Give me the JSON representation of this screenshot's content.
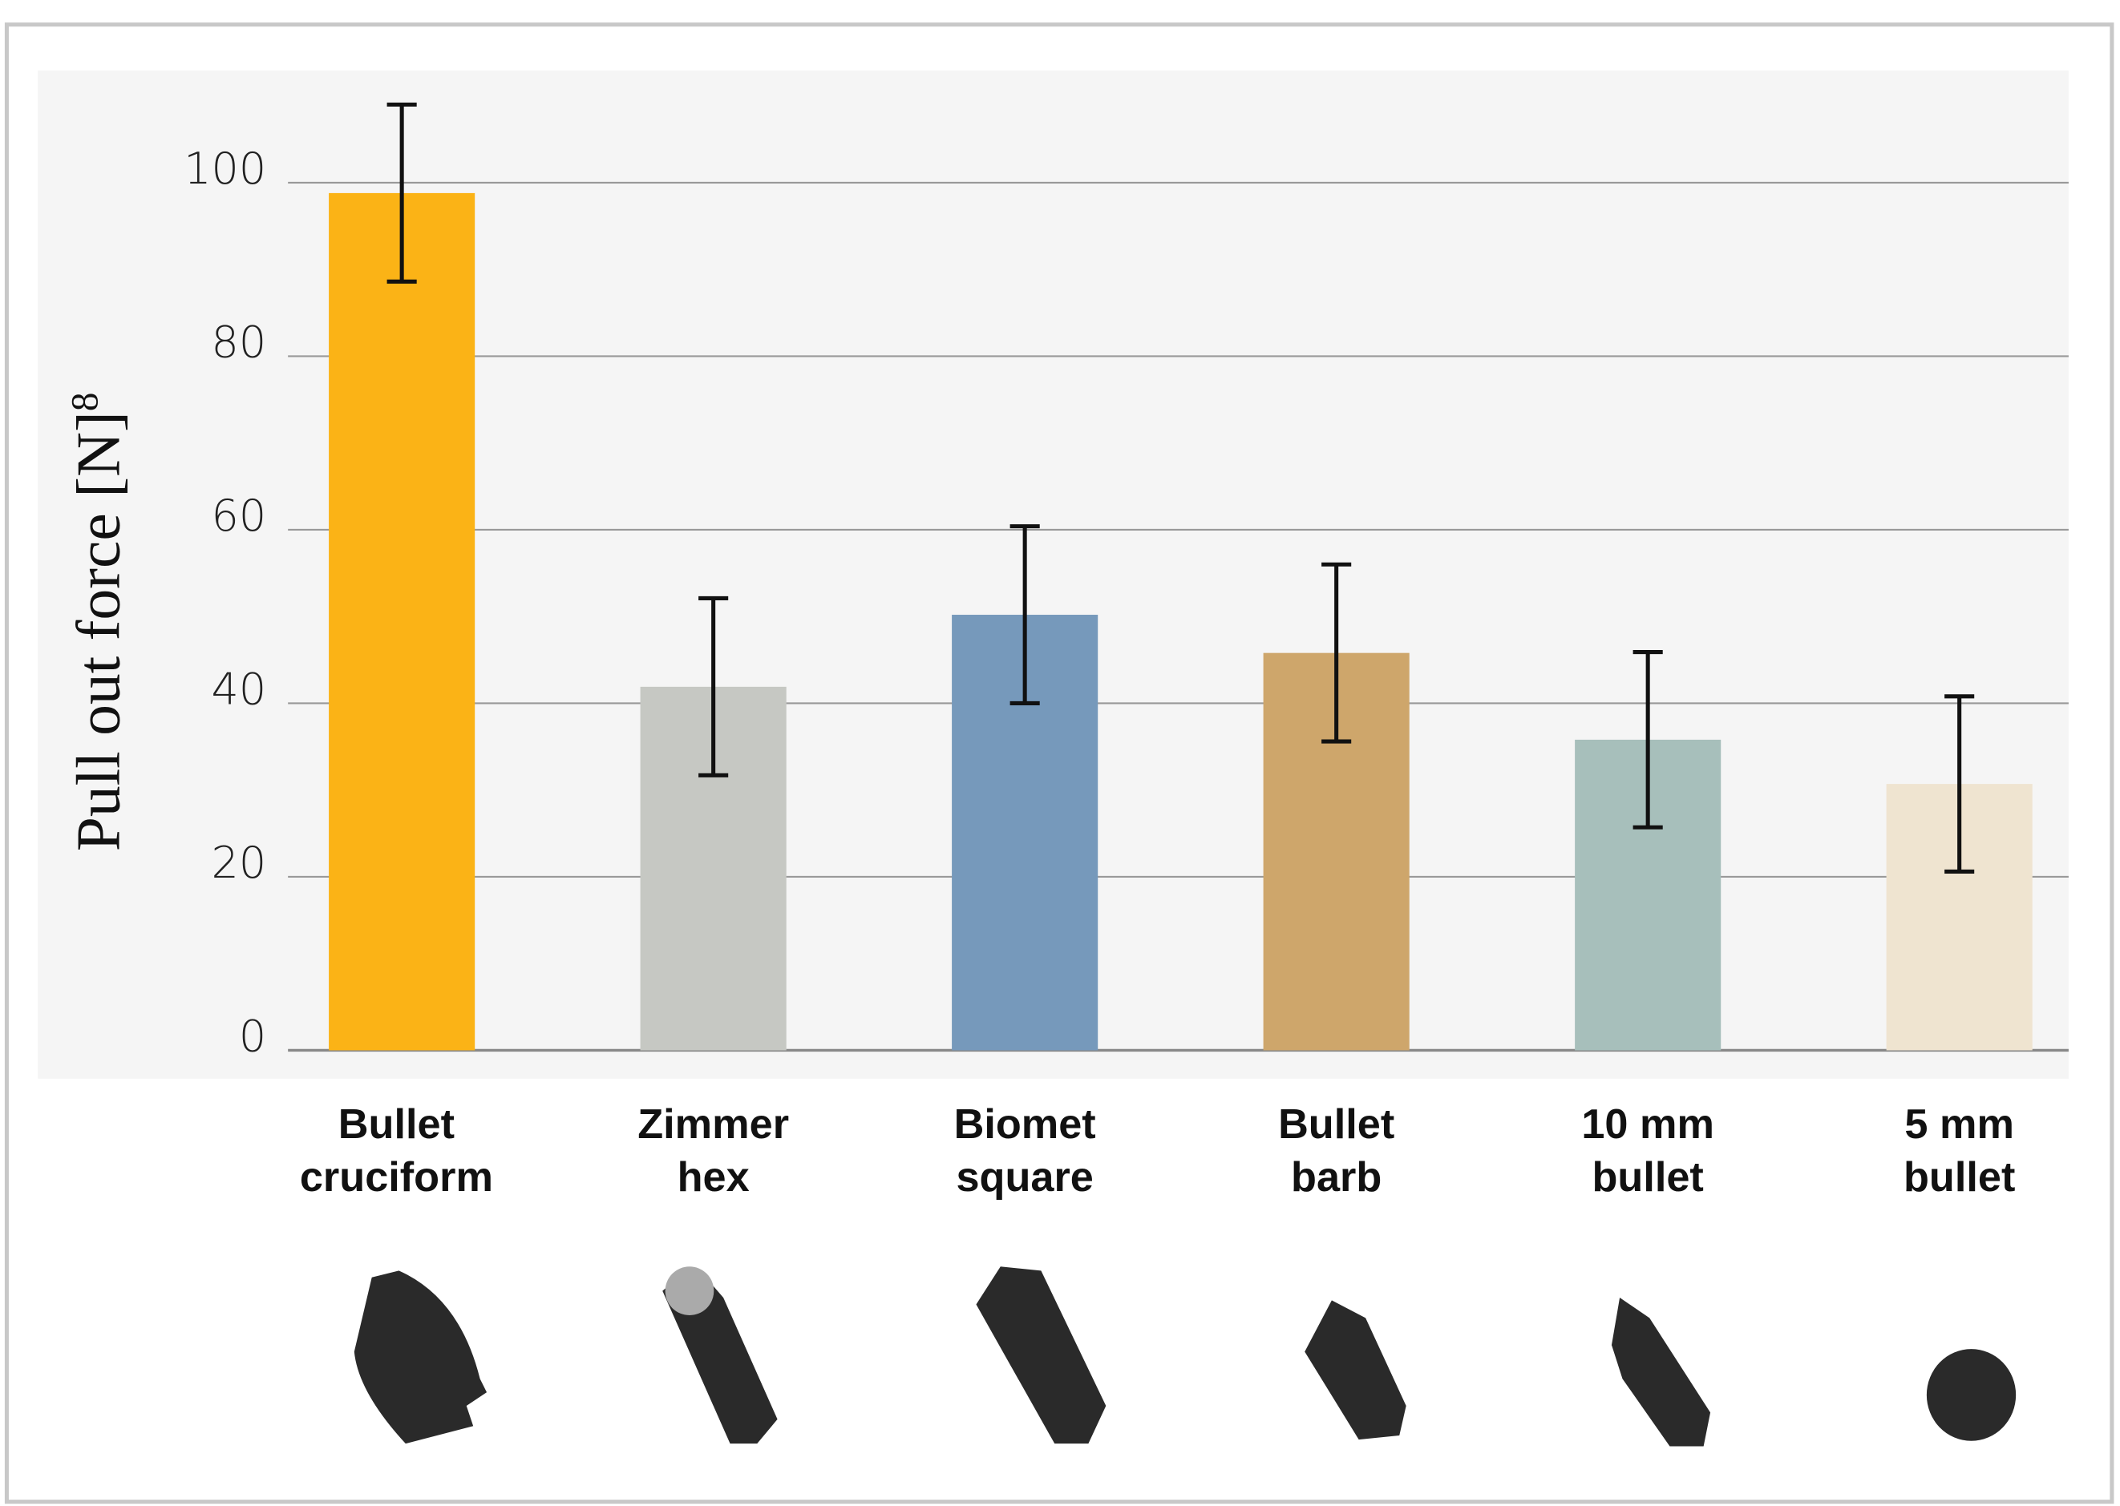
{
  "chart_data": {
    "type": "bar",
    "ylabel": "Pull out force [N]",
    "ylabel_superscript": "8",
    "categories": [
      [
        "Bullet",
        "cruciform"
      ],
      [
        "Zimmer",
        "hex"
      ],
      [
        "Biomet",
        "square"
      ],
      [
        "Bullet",
        "barb"
      ],
      [
        "10 mm",
        "bullet"
      ],
      [
        "5 mm",
        "bullet"
      ]
    ],
    "values": [
      98.8,
      41.9,
      50.2,
      45.8,
      35.8,
      30.7
    ],
    "errors": [
      10.2,
      10.2,
      10.2,
      10.2,
      10.1,
      10.1
    ],
    "colors": [
      "#fbb316",
      "#c6c8c3",
      "#7699bb",
      "#cea66b",
      "#a7bfbb",
      "#efe4d0"
    ],
    "ylim": [
      0,
      100
    ],
    "yticks": [
      0,
      20,
      40,
      60,
      80,
      100
    ],
    "grid": true
  }
}
